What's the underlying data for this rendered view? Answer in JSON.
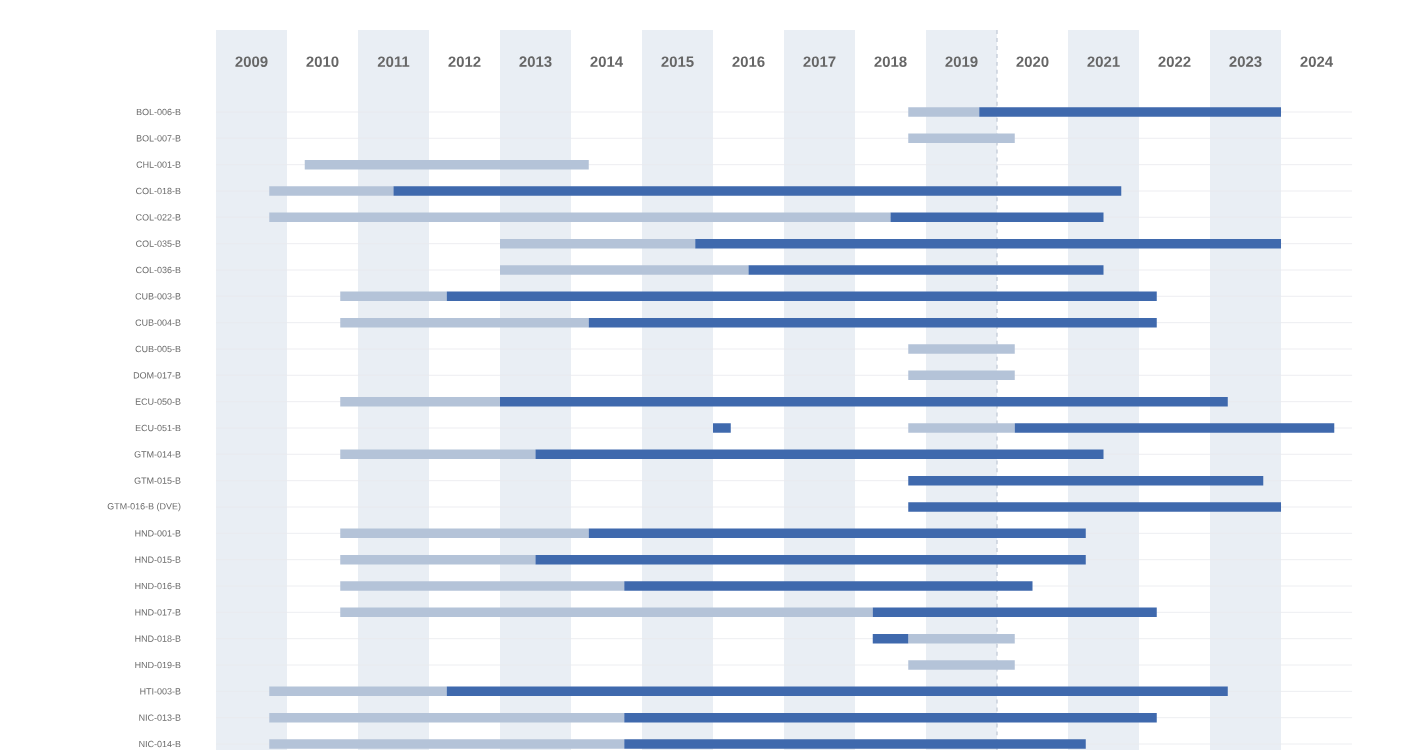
{
  "chart_data": {
    "type": "bar",
    "orientation": "horizontal",
    "grid": "y",
    "categories": [
      "BOL-006-B",
      "BOL-007-B",
      "CHL-001-B",
      "COL-018-B",
      "COL-022-B",
      "COL-035-B",
      "COL-036-B",
      "CUB-003-B",
      "CUB-004-B",
      "CUB-005-B",
      "DOM-017-B",
      "ECU-050-B",
      "ECU-051-B",
      "GTM-014-B",
      "GTM-015-B",
      "GTM-016-B (DVE)",
      "HND-001-B",
      "HND-015-B",
      "HND-016-B",
      "HND-017-B",
      "HND-018-B",
      "HND-019-B",
      "HTI-003-B",
      "NIC-013-B",
      "NIC-014-B"
    ],
    "series": [
      {
        "color": "#b4c3d8",
        "base": [
          2018.25,
          2018.25,
          2009.75,
          2009.25,
          2009.25,
          2012.5,
          2012.5,
          2010.25,
          2010.25,
          2018.25,
          2018.25,
          2010.25,
          2018.25,
          2010.25,
          null,
          null,
          2010.25,
          2010.25,
          2010.25,
          2010.25,
          2018.25,
          2018.25,
          2009.25,
          2009.25,
          2009.25
        ],
        "values": [
          1.0,
          1.5,
          4.0,
          1.75,
          8.75,
          2.75,
          3.5,
          1.5,
          3.5,
          1.5,
          1.5,
          2.25,
          1.5,
          2.75,
          null,
          null,
          3.5,
          2.75,
          4.0,
          7.5,
          1.5,
          1.5,
          2.5,
          5.0,
          5.0
        ]
      },
      {
        "color": "#3f69ad",
        "base": [
          2019.25,
          null,
          null,
          2011.0,
          2018.0,
          2015.25,
          2016.0,
          2011.75,
          2013.75,
          null,
          null,
          2012.5,
          2019.75,
          2013.0,
          2018.25,
          2018.25,
          2013.75,
          2013.0,
          2014.25,
          2017.75,
          2017.75,
          null,
          2011.75,
          2014.25,
          2014.25
        ],
        "values": [
          4.25,
          null,
          null,
          10.25,
          3.0,
          8.25,
          5.0,
          10.0,
          8.0,
          null,
          null,
          10.25,
          4.5,
          8.0,
          5.0,
          5.25,
          7.0,
          7.75,
          5.75,
          4.0,
          0.5,
          null,
          11.0,
          7.5,
          6.5
        ]
      },
      {
        "color": "#3f69ad",
        "base": [
          null,
          null,
          null,
          null,
          null,
          null,
          null,
          null,
          null,
          null,
          null,
          null,
          2015.5,
          null,
          null,
          null,
          null,
          null,
          null,
          null,
          null,
          null,
          null,
          null,
          null
        ],
        "values": [
          null,
          null,
          null,
          null,
          null,
          null,
          null,
          null,
          null,
          null,
          null,
          null,
          0.25,
          null,
          null,
          null,
          null,
          null,
          null,
          null,
          null,
          null,
          null,
          null,
          null
        ]
      }
    ],
    "xlim": [
      2008.5,
      2024.5
    ],
    "xticks": [
      2009,
      2010,
      2011,
      2012,
      2013,
      2014,
      2015,
      2016,
      2017,
      2018,
      2019,
      2020,
      2021,
      2022,
      2023,
      2024
    ],
    "bands": [
      {
        "axis": "x",
        "from": 2008.5,
        "to": 2009.5,
        "color": "#e9eef4"
      },
      {
        "axis": "x",
        "from": 2010.5,
        "to": 2011.5,
        "color": "#e9eef4"
      },
      {
        "axis": "x",
        "from": 2012.5,
        "to": 2013.5,
        "color": "#e9eef4"
      },
      {
        "axis": "x",
        "from": 2014.5,
        "to": 2015.5,
        "color": "#e9eef4"
      },
      {
        "axis": "x",
        "from": 2016.5,
        "to": 2017.5,
        "color": "#e9eef4"
      },
      {
        "axis": "x",
        "from": 2018.5,
        "to": 2019.5,
        "color": "#e9eef4"
      },
      {
        "axis": "x",
        "from": 2020.5,
        "to": 2021.5,
        "color": "#e9eef4"
      },
      {
        "axis": "x",
        "from": 2022.5,
        "to": 2023.5,
        "color": "#e9eef4"
      }
    ],
    "ref_lines": [
      {
        "axis": "x",
        "value": 2019.5,
        "color": "#bfc8d4",
        "line_style": "dashed"
      }
    ]
  }
}
